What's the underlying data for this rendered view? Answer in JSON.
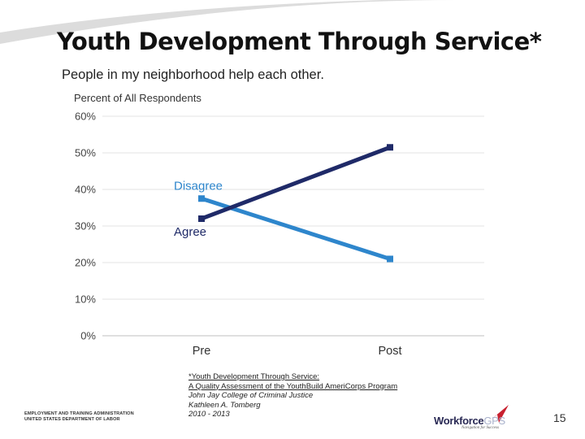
{
  "slide": {
    "title": "Youth Development Through Service*",
    "page_number": "15"
  },
  "chart_data": {
    "type": "line",
    "title": "People in my neighborhood help each other.",
    "ylabel": "Percent of All Respondents",
    "xlabel": "",
    "categories": [
      "Pre",
      "Post"
    ],
    "ylim": [
      0,
      60
    ],
    "yticks": [
      "0%",
      "10%",
      "20%",
      "30%",
      "40%",
      "50%",
      "60%"
    ],
    "series": [
      {
        "name": "Disagree",
        "values": [
          37.5,
          21
        ],
        "color": "#2e86cc"
      },
      {
        "name": "Agree",
        "values": [
          32,
          51.5
        ],
        "color": "#1f2a68"
      }
    ],
    "grid": true
  },
  "footnote": {
    "line1": "*Youth Development Through Service:",
    "line2": "A Quality Assessment of the YouthBuild AmeriCorps Program",
    "line3": "John Jay College of Criminal Justice",
    "line4": "Kathleen A. Tomberg",
    "line5": "2010 - 2013"
  },
  "footer": {
    "agency_line1": "EMPLOYMENT AND TRAINING ADMINISTRATION",
    "agency_line2": "UNITED STATES DEPARTMENT OF LABOR",
    "logo_brand": "Workforce",
    "logo_brand_suffix": "GPS",
    "logo_tagline": "Navigation for Success"
  },
  "colors": {
    "swoosh": "#d9d9d9",
    "grid": "#e3e3e3",
    "axis_text": "#444444",
    "logo_red": "#c8202f"
  }
}
